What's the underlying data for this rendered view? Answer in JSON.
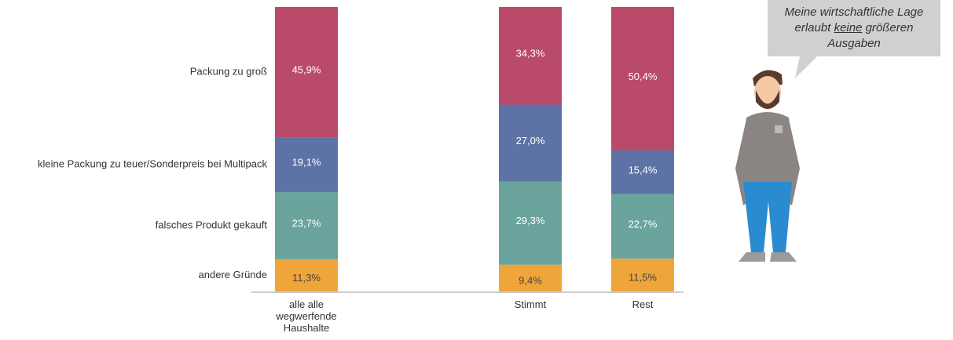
{
  "chart_data": {
    "type": "stacked_bar",
    "categories": [
      "alle alle wegwerfende Haushalte",
      "Stimmt",
      "Rest"
    ],
    "ylim": [
      0,
      100
    ],
    "series": [
      {
        "name": "andere Gründe",
        "color": "#f0a53a",
        "values": [
          11.3,
          9.4,
          11.5
        ],
        "value_labels": [
          "11,3%",
          "9,4%",
          "11,5%"
        ]
      },
      {
        "name": "falsches Produkt gekauft",
        "color": "#6ba49c",
        "values": [
          23.7,
          29.3,
          22.7
        ],
        "value_labels": [
          "23,7%",
          "29,3%",
          "22,7%"
        ]
      },
      {
        "name": "kleine Packung zu teuer/Sonderpreis bei Multipack",
        "color": "#5d72a5",
        "values": [
          19.1,
          27.0,
          15.4
        ],
        "value_labels": [
          "19,1%",
          "27,0%",
          "15,4%"
        ]
      },
      {
        "name": "Packung zu groß",
        "color": "#b94a69",
        "values": [
          45.9,
          34.3,
          50.4
        ],
        "value_labels": [
          "45,9%",
          "34,3%",
          "50,4%"
        ]
      }
    ],
    "annotation": {
      "before": "Meine wirtschaftliche Lage erlaubt ",
      "underlined": "keine",
      "after": " größeren Ausgaben"
    }
  }
}
